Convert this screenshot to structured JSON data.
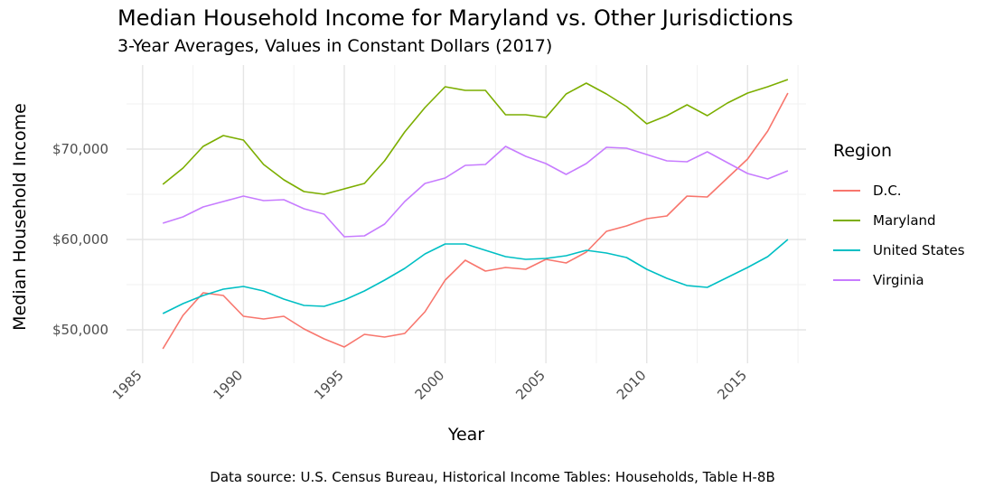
{
  "chart_data": {
    "type": "line",
    "title": "Median Household Income for Maryland vs. Other Jurisdictions",
    "subtitle": "3-Year Averages, Values in Constant Dollars (2017)",
    "xlabel": "Year",
    "ylabel": "Median Household Income",
    "caption": "Data source: U.S. Census Bureau, Historical Income Tables: Households, Table H-8B",
    "xlim": [
      1984.2,
      2017.9
    ],
    "ylim": [
      46300,
      79300
    ],
    "x_ticks": [
      1985,
      1990,
      1995,
      2000,
      2005,
      2010,
      2015
    ],
    "y_ticks": [
      50000,
      60000,
      70000
    ],
    "y_tick_labels": [
      "$50,000",
      "$60,000",
      "$70,000"
    ],
    "grid": true,
    "legend_title": "Region",
    "legend_position": "right",
    "x": [
      1986,
      1987,
      1988,
      1989,
      1990,
      1991,
      1992,
      1993,
      1994,
      1995,
      1996,
      1997,
      1998,
      1999,
      2000,
      2001,
      2002,
      2003,
      2004,
      2005,
      2006,
      2007,
      2008,
      2009,
      2010,
      2011,
      2012,
      2013,
      2014,
      2015,
      2016,
      2017
    ],
    "series": [
      {
        "name": "D.C.",
        "color": "#F8766D",
        "values": [
          47900,
          51600,
          54100,
          53800,
          51500,
          51200,
          51500,
          50100,
          49000,
          48100,
          49500,
          49200,
          49600,
          52000,
          55500,
          57700,
          56500,
          56900,
          56700,
          57800,
          57400,
          58600,
          60900,
          61500,
          62300,
          62600,
          64800,
          64700,
          66800,
          68900,
          72000,
          76200
        ]
      },
      {
        "name": "Maryland",
        "color": "#7CAE00",
        "values": [
          66100,
          67900,
          70300,
          71500,
          71000,
          68300,
          66600,
          65300,
          65000,
          65600,
          66200,
          68700,
          71900,
          74600,
          76900,
          76500,
          76500,
          73800,
          73800,
          73500,
          76100,
          77300,
          76100,
          74700,
          72800,
          73700,
          74900,
          73700,
          75100,
          76200,
          76900,
          77700
        ]
      },
      {
        "name": "United States",
        "color": "#00BFC4",
        "values": [
          51800,
          52900,
          53800,
          54500,
          54800,
          54300,
          53400,
          52700,
          52600,
          53300,
          54300,
          55500,
          56800,
          58400,
          59500,
          59500,
          58800,
          58100,
          57800,
          57900,
          58200,
          58800,
          58500,
          58000,
          56700,
          55700,
          54900,
          54700,
          55800,
          56900,
          58100,
          60000
        ]
      },
      {
        "name": "Virginia",
        "color": "#C77CFF",
        "values": [
          61800,
          62500,
          63600,
          64200,
          64800,
          64300,
          64400,
          63400,
          62800,
          60300,
          60400,
          61700,
          64200,
          66200,
          66800,
          68200,
          68300,
          70300,
          69200,
          68400,
          67200,
          68400,
          70200,
          70100,
          69400,
          68700,
          68600,
          69700,
          68500,
          67300,
          66700,
          67600
        ]
      }
    ]
  }
}
